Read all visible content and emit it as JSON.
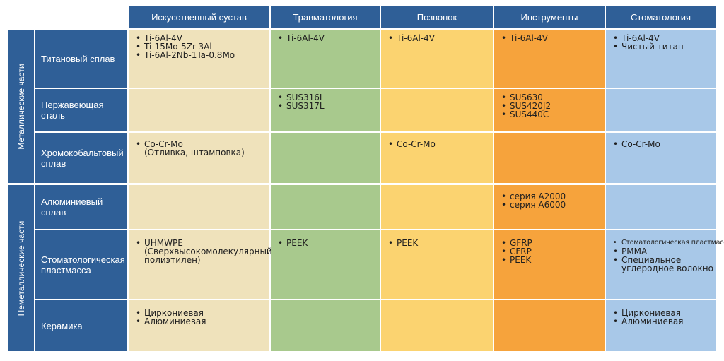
{
  "columns": [
    "Искусственный сустав",
    "Травматология",
    "Позвонок",
    "Инструменты",
    "Стоматология"
  ],
  "groups": {
    "metal": "Металлические части",
    "nonmetal": "Неметаллические части"
  },
  "rows": {
    "r0": {
      "label": [
        "Титановый сплав"
      ],
      "c0": [
        "Ti-6Al-4V",
        "Ti-15Mo-5Zr-3Al",
        "Ti-6Al-2Nb-1Ta-0.8Mo"
      ],
      "c1": [
        "Ti-6Al-4V"
      ],
      "c2": [
        "Ti-6Al-4V"
      ],
      "c3": [
        "Ti-6Al-4V"
      ],
      "c4": [
        "Ti-6Al-4V",
        "Чистый титан"
      ]
    },
    "r1": {
      "label": [
        "Нержавеющая",
        "сталь"
      ],
      "c1": [
        "SUS316L",
        "SUS317L"
      ],
      "c3": [
        "SUS630",
        "SUS420J2",
        "SUS440C"
      ]
    },
    "r2": {
      "label": [
        "Хромокобальтовый",
        "сплав"
      ],
      "c0": [
        "Co-Cr-Mo",
        "(Отливка, штамповка)"
      ],
      "c2": [
        "Co-Cr-Mo"
      ],
      "c4": [
        "Co-Cr-Mo"
      ]
    },
    "r3": {
      "label": [
        "Алюминиевый",
        "сплав"
      ],
      "c3": [
        "серия A2000",
        "серия A6000"
      ]
    },
    "r4": {
      "label": [
        "Стоматологическая",
        "пластмасса"
      ],
      "c0": [
        "UHMWPE",
        "(Сверхвысокомолекулярный",
        "полиэтилен)"
      ],
      "c1": [
        "PEEK"
      ],
      "c2": [
        "PEEK"
      ],
      "c3": [
        "GFRP",
        "CFRP",
        "PEEK"
      ],
      "c4": [
        "Стоматологическая пластмасса",
        "PMMA",
        "Специальное",
        "углеродное волокно"
      ]
    },
    "r5": {
      "label": [
        "Керамика"
      ],
      "c0": [
        "Циркониевая",
        "Алюминиевая"
      ],
      "c4": [
        "Циркониевая",
        "Алюминиевая"
      ]
    }
  }
}
